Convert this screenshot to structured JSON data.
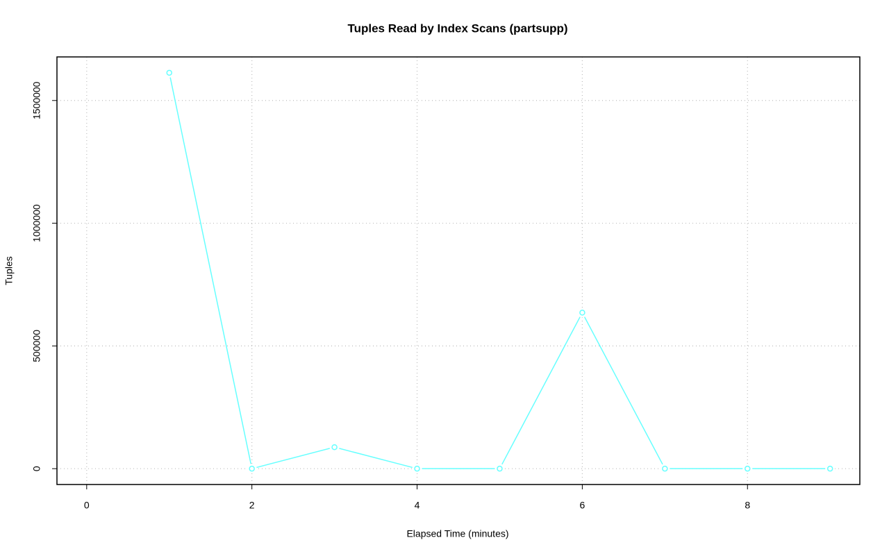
{
  "chart_data": {
    "type": "line",
    "title": "Tuples Read by Index Scans (partsupp)",
    "x_label": "Elapsed Time (minutes)",
    "y_label": "Tuples",
    "x": [
      1,
      2,
      3,
      4,
      5,
      6,
      7,
      8,
      9
    ],
    "series": [
      {
        "name": "partsupp",
        "color": "#66ffff",
        "values": [
          1613000,
          0,
          87600,
          0,
          0,
          635600,
          0,
          0,
          0
        ]
      }
    ],
    "xlim": [
      -0.36,
      9.36
    ],
    "ylim": [
      -64520,
      1677520
    ],
    "xticks": [
      0,
      2,
      4,
      6,
      8
    ],
    "yticks": [
      0,
      500000,
      1000000,
      1500000
    ],
    "grid": true
  }
}
